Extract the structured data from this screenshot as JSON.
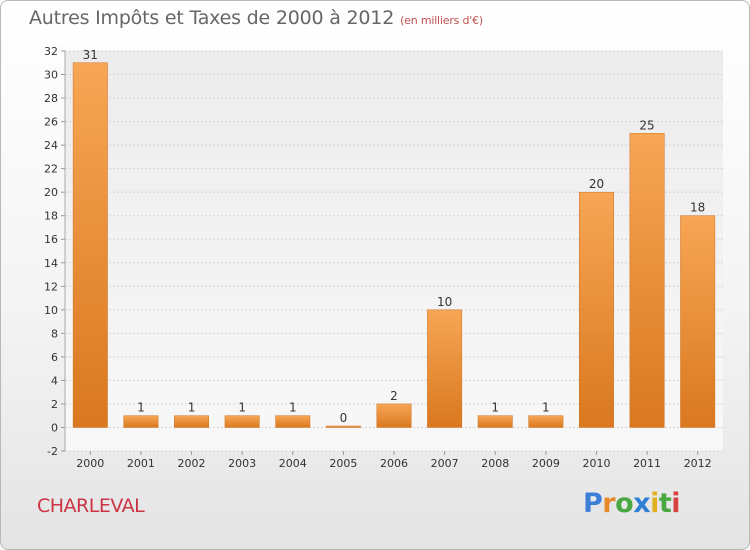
{
  "header": {
    "title": "Autres Impôts et Taxes de 2000 à 2012",
    "subtitle": "(en milliers d'€)"
  },
  "footer": {
    "city": "CHARLEVAL",
    "brand": [
      "P",
      "r",
      "o",
      "x",
      "i",
      "t",
      "i"
    ],
    "brand_colors": [
      "#3d7fd6",
      "#e8892b",
      "#4aa843",
      "#2f7fd6",
      "#e0b020",
      "#4aa843",
      "#d94040"
    ]
  },
  "chart_data": {
    "type": "bar",
    "title": "Autres Impôts et Taxes de 2000 à 2012",
    "subtitle": "(en milliers d'€)",
    "categories": [
      "2000",
      "2001",
      "2002",
      "2003",
      "2004",
      "2005",
      "2006",
      "2007",
      "2008",
      "2009",
      "2010",
      "2011",
      "2012"
    ],
    "values": [
      31,
      1,
      1,
      1,
      1,
      0,
      2,
      10,
      1,
      1,
      20,
      25,
      18
    ],
    "ylim": [
      -2,
      32
    ],
    "yticks": [
      -2,
      0,
      2,
      4,
      6,
      8,
      10,
      12,
      14,
      16,
      18,
      20,
      22,
      24,
      26,
      28,
      30,
      32
    ],
    "grid": true,
    "bar_color": "#f0933c",
    "xlabel": "",
    "ylabel": ""
  }
}
